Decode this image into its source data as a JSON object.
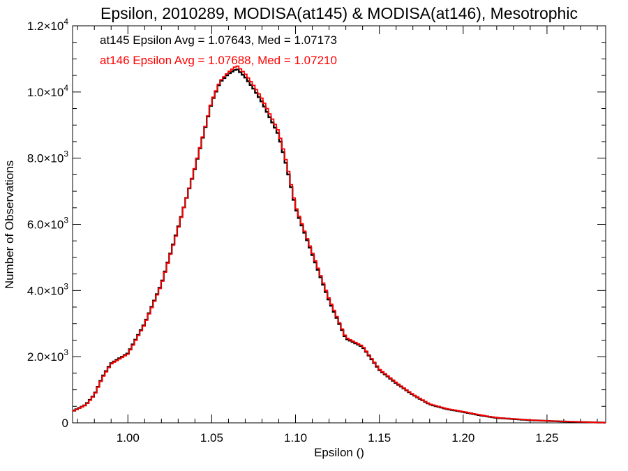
{
  "chart_data": {
    "type": "line",
    "title": "Epsilon, 2010289, MODISA(at145) & MODISA(at146), Mesotrophic",
    "xlabel": "Epsilon ()",
    "ylabel": "Number of Observations",
    "xlim": [
      0.967,
      1.285
    ],
    "ylim": [
      0,
      12000
    ],
    "x_ticks": [
      1.0,
      1.05,
      1.1,
      1.15,
      1.2,
      1.25
    ],
    "x_tick_labels": [
      "1.00",
      "1.05",
      "1.10",
      "1.15",
      "1.20",
      "1.25"
    ],
    "y_ticks": [
      0,
      2000,
      4000,
      6000,
      8000,
      10000,
      12000
    ],
    "y_tick_labels": [
      {
        "mantissa": "0",
        "exp": ""
      },
      {
        "mantissa": "2.0×10",
        "exp": "3"
      },
      {
        "mantissa": "4.0×10",
        "exp": "3"
      },
      {
        "mantissa": "6.0×10",
        "exp": "3"
      },
      {
        "mantissa": "8.0×10",
        "exp": "3"
      },
      {
        "mantissa": "1.0×10",
        "exp": "4"
      },
      {
        "mantissa": "1.2×10",
        "exp": "4"
      }
    ],
    "legend_placement": "top-left",
    "annotations": [
      {
        "text": "at145 Epsilon Avg = 1.07643, Med = 1.07173",
        "color": "#000000"
      },
      {
        "text": "at146 Epsilon Avg = 1.07688, Med = 1.07210",
        "color": "#ff0000"
      }
    ],
    "series": [
      {
        "color": "#000000",
        "x": [
          0.967,
          0.975,
          0.98,
          0.985,
          0.99,
          1.0,
          1.01,
          1.02,
          1.03,
          1.04,
          1.05,
          1.055,
          1.06,
          1.065,
          1.07,
          1.075,
          1.08,
          1.085,
          1.09,
          1.095,
          1.1,
          1.11,
          1.12,
          1.13,
          1.14,
          1.15,
          1.16,
          1.17,
          1.18,
          1.19,
          1.2,
          1.21,
          1.22,
          1.24,
          1.26,
          1.285
        ],
        "y": [
          350,
          550,
          850,
          1400,
          1800,
          2100,
          3000,
          4200,
          5900,
          7700,
          9700,
          10300,
          10550,
          10700,
          10450,
          10100,
          9700,
          9200,
          8700,
          7700,
          6500,
          5100,
          3700,
          2550,
          2300,
          1600,
          1200,
          850,
          560,
          420,
          330,
          230,
          150,
          80,
          40,
          5
        ]
      },
      {
        "color": "#ff0000",
        "x": [
          0.967,
          0.975,
          0.98,
          0.985,
          0.99,
          1.0,
          1.01,
          1.02,
          1.03,
          1.04,
          1.05,
          1.055,
          1.06,
          1.065,
          1.07,
          1.075,
          1.08,
          1.085,
          1.09,
          1.095,
          1.1,
          1.11,
          1.12,
          1.13,
          1.14,
          1.15,
          1.16,
          1.17,
          1.18,
          1.19,
          1.2,
          1.21,
          1.22,
          1.24,
          1.26,
          1.285
        ],
        "y": [
          340,
          540,
          840,
          1380,
          1780,
          2080,
          2980,
          4180,
          5880,
          7720,
          9720,
          10330,
          10600,
          10800,
          10550,
          10200,
          9800,
          9300,
          8800,
          7800,
          6550,
          5150,
          3750,
          2580,
          2320,
          1620,
          1220,
          860,
          570,
          430,
          340,
          240,
          155,
          85,
          42,
          5
        ]
      }
    ]
  }
}
